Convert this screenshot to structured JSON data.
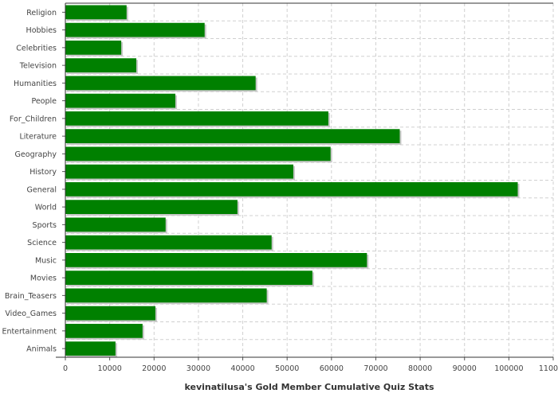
{
  "chart_data": {
    "type": "bar",
    "orientation": "horizontal",
    "title": "",
    "xlabel": "kevinatilusa's Gold Member Cumulative Quiz Stats",
    "ylabel": "",
    "categories": [
      "Religion",
      "Hobbies",
      "Celebrities",
      "Television",
      "Humanities",
      "People",
      "For_Children",
      "Literature",
      "Geography",
      "History",
      "General",
      "World",
      "Sports",
      "Science",
      "Music",
      "Movies",
      "Brain_Teasers",
      "Video_Games",
      "Entertainment",
      "Animals"
    ],
    "values": [
      13800,
      31400,
      12600,
      16000,
      42900,
      24800,
      59300,
      75400,
      59800,
      51400,
      102000,
      38800,
      22600,
      46500,
      68000,
      55700,
      45400,
      20300,
      17400,
      11300
    ],
    "xlim": [
      0,
      110000
    ],
    "xticks": [
      "0",
      "10000",
      "20000",
      "30000",
      "40000",
      "50000",
      "60000",
      "70000",
      "80000",
      "90000",
      "100000",
      "110000"
    ],
    "grid": true,
    "legend": "none",
    "colors": {
      "bar": "#008000",
      "shadow": "#c8c8c8",
      "grid": "#d0d0d0"
    }
  }
}
